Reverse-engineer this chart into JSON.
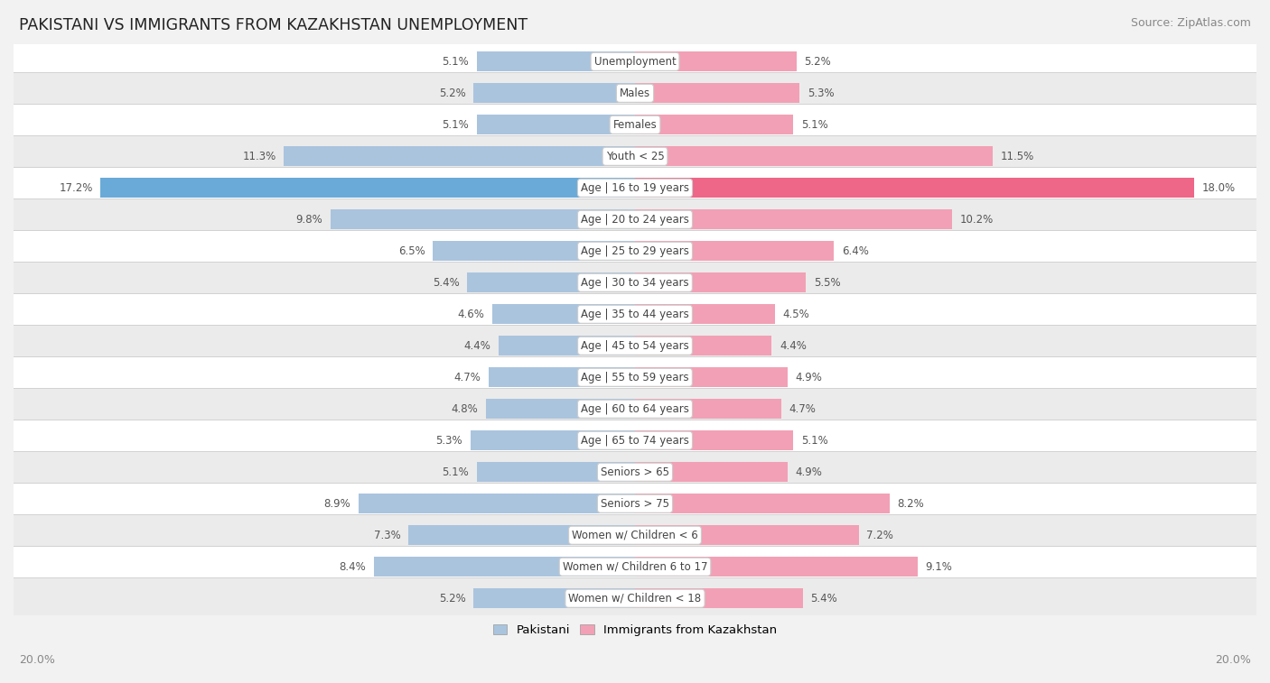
{
  "title": "PAKISTANI VS IMMIGRANTS FROM KAZAKHSTAN UNEMPLOYMENT",
  "source": "Source: ZipAtlas.com",
  "categories": [
    "Unemployment",
    "Males",
    "Females",
    "Youth < 25",
    "Age | 16 to 19 years",
    "Age | 20 to 24 years",
    "Age | 25 to 29 years",
    "Age | 30 to 34 years",
    "Age | 35 to 44 years",
    "Age | 45 to 54 years",
    "Age | 55 to 59 years",
    "Age | 60 to 64 years",
    "Age | 65 to 74 years",
    "Seniors > 65",
    "Seniors > 75",
    "Women w/ Children < 6",
    "Women w/ Children 6 to 17",
    "Women w/ Children < 18"
  ],
  "left_values": [
    5.1,
    5.2,
    5.1,
    11.3,
    17.2,
    9.8,
    6.5,
    5.4,
    4.6,
    4.4,
    4.7,
    4.8,
    5.3,
    5.1,
    8.9,
    7.3,
    8.4,
    5.2
  ],
  "right_values": [
    5.2,
    5.3,
    5.1,
    11.5,
    18.0,
    10.2,
    6.4,
    5.5,
    4.5,
    4.4,
    4.9,
    4.7,
    5.1,
    4.9,
    8.2,
    7.2,
    9.1,
    5.4
  ],
  "left_color": "#aac4de",
  "right_color": "#f2a0b5",
  "highlight_left_color": "#6aaad8",
  "highlight_right_color": "#ee6688",
  "bar_height": 0.62,
  "xlim": 20.0,
  "bg_color": "#f2f2f2",
  "row_bg_white": "#ffffff",
  "row_bg_gray": "#ebebeb",
  "label_color": "#444444",
  "value_color": "#555555",
  "title_color": "#222222",
  "legend_pakistani": "Pakistani",
  "legend_kazakhstan": "Immigrants from Kazakhstan",
  "axis_label_left": "20.0%",
  "axis_label_right": "20.0%"
}
